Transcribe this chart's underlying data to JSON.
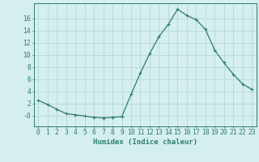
{
  "x": [
    0,
    1,
    2,
    3,
    4,
    5,
    6,
    7,
    8,
    9,
    10,
    11,
    12,
    13,
    14,
    15,
    16,
    17,
    18,
    19,
    20,
    21,
    22,
    23
  ],
  "y": [
    2.5,
    1.8,
    1.0,
    0.3,
    0.1,
    -0.1,
    -0.3,
    -0.4,
    -0.3,
    -0.2,
    3.5,
    7.0,
    10.2,
    13.0,
    15.0,
    17.5,
    16.5,
    15.8,
    14.2,
    10.8,
    8.7,
    6.8,
    5.2,
    4.3
  ],
  "line_color": "#2e7d6e",
  "marker": "P",
  "marker_size": 2.5,
  "bg_color": "#d5eeee",
  "grid_color": "#b8d8d8",
  "xlabel": "Humidex (Indice chaleur)",
  "xlim": [
    -0.5,
    23.5
  ],
  "ylim": [
    -1.8,
    18.5
  ],
  "yticks": [
    0,
    2,
    4,
    6,
    8,
    10,
    12,
    14,
    16
  ],
  "ytick_labels": [
    "-0",
    "2",
    "4",
    "6",
    "8",
    "10",
    "12",
    "14",
    "16"
  ],
  "xticks": [
    0,
    1,
    2,
    3,
    4,
    5,
    6,
    7,
    8,
    9,
    10,
    11,
    12,
    13,
    14,
    15,
    16,
    17,
    18,
    19,
    20,
    21,
    22,
    23
  ],
  "tick_color": "#2e7d6e",
  "axis_color": "#2e7d6e",
  "label_fontsize": 6.5,
  "tick_fontsize": 5.8
}
